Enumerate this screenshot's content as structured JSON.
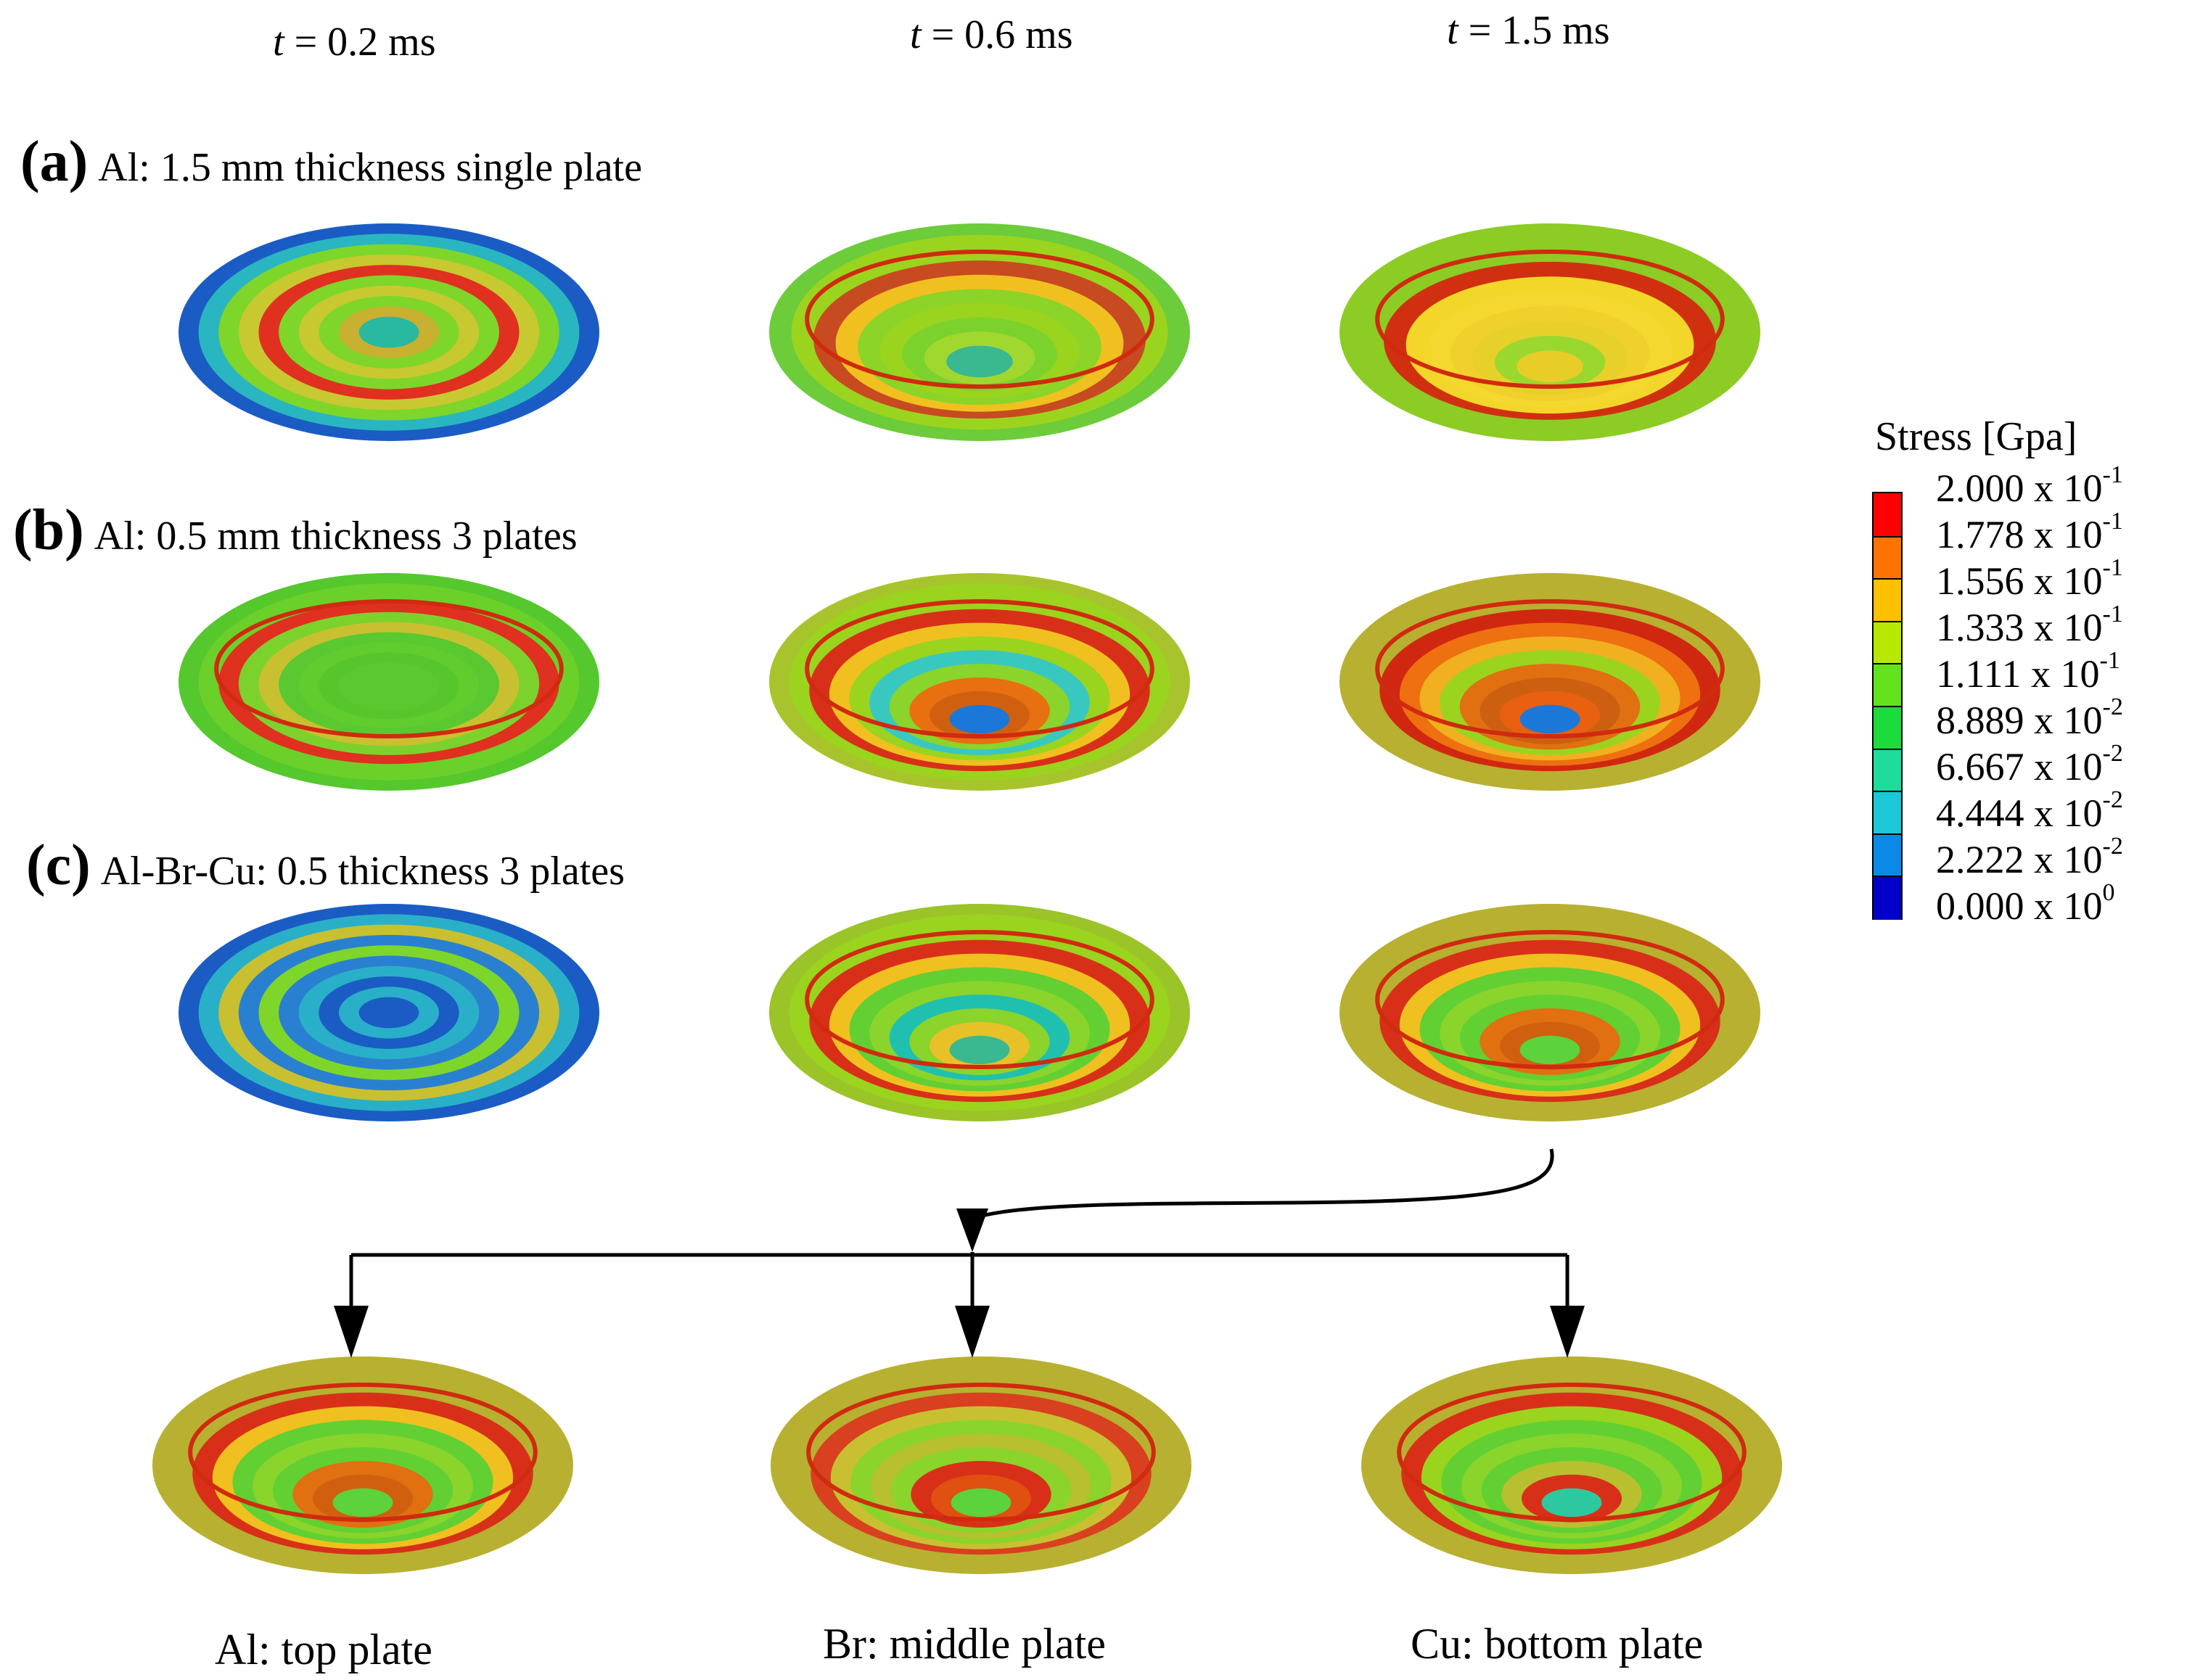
{
  "time_labels": [
    {
      "var": "t",
      "rest": " = 0.2 ms"
    },
    {
      "var": "t",
      "rest": " = 0.6 ms"
    },
    {
      "var": "t",
      "rest": " = 1.5 ms"
    }
  ],
  "rows": [
    {
      "tag": "(a)",
      "text": "Al: 1.5 mm thickness single plate"
    },
    {
      "tag": "(b)",
      "text": "Al: 0.5 mm thickness 3 plates"
    },
    {
      "tag": "(c)",
      "text": "Al-Br-Cu: 0.5 thickness 3 plates"
    }
  ],
  "plate_captions": [
    "Al: top plate",
    "Br: middle plate",
    "Cu: bottom plate"
  ],
  "legend": {
    "title": "Stress [Gpa]",
    "entries": [
      {
        "mantissa": "2.000 x 10",
        "exp": "-1",
        "color": "#ff0000"
      },
      {
        "mantissa": "1.778 x 10",
        "exp": "-1",
        "color": "#ff7300"
      },
      {
        "mantissa": "1.556 x 10",
        "exp": "-1",
        "color": "#ffc000"
      },
      {
        "mantissa": "1.333 x 10",
        "exp": "-1",
        "color": "#b8e800"
      },
      {
        "mantissa": "1.111 x 10",
        "exp": "-1",
        "color": "#62e21a"
      },
      {
        "mantissa": "8.889 x 10",
        "exp": "-2",
        "color": "#1bdc3c"
      },
      {
        "mantissa": "6.667 x 10",
        "exp": "-2",
        "color": "#1ddc9c"
      },
      {
        "mantissa": "4.444 x 10",
        "exp": "-2",
        "color": "#1cc8d8"
      },
      {
        "mantissa": "2.222 x 10",
        "exp": "-2",
        "color": "#0a8ae6"
      },
      {
        "mantissa": "0.000 x 10",
        "exp": "0",
        "color": "#0000c8"
      }
    ]
  },
  "colors": {
    "red": "#ff1a00",
    "orange": "#ff7a00",
    "amber": "#e6b800",
    "olive": "#b4b42c",
    "lime": "#9ad41e",
    "green": "#5cd23c",
    "teal": "#2ec89a",
    "cyan": "#20bcd0",
    "blue": "#1c5ec8"
  },
  "plates": [
    {
      "name": "plate-a-t02",
      "rings": [
        "#1a5cc4",
        "#29b6c0",
        "#7ed62a",
        "#c8c830",
        "#e03020",
        "#7ed62a",
        "#c8c830",
        "#7ed62a",
        "#c8b030",
        "#29b8a0"
      ],
      "dish": 0.0
    },
    {
      "name": "plate-a-t06",
      "rings": [
        "#6ccc3a",
        "#9bd41e",
        "#c84a20",
        "#f0c020",
        "#8cd428",
        "#9ad41e",
        "#7cd22c",
        "#a0d830",
        "#3ab890"
      ],
      "dish": 0.6
    },
    {
      "name": "plate-a-t15",
      "rings": [
        "#8ccc24",
        "#8ccc24",
        "#d03010",
        "#f2d62a",
        "#f4d830",
        "#f0d02a",
        "#e8d02a",
        "#9ad830",
        "#e8cc28"
      ],
      "dish": 0.7
    },
    {
      "name": "plate-b-t02",
      "rings": [
        "#54c82c",
        "#6cd02a",
        "#e03020",
        "#7cd22c",
        "#c8c030",
        "#5ac830",
        "#60cc2e",
        "#56c62c",
        "#5cc830",
        "#5ac830"
      ],
      "dish": 0.1
    },
    {
      "name": "plate-b-t06",
      "rings": [
        "#a8c42c",
        "#9ad41e",
        "#d83018",
        "#f0c020",
        "#9ad41e",
        "#38c8c0",
        "#8ad42c",
        "#e87010",
        "#d06010",
        "#1c78d8"
      ],
      "dish": 0.75
    },
    {
      "name": "plate-b-t15",
      "rings": [
        "#b8b030",
        "#b8b030",
        "#d02810",
        "#ee7010",
        "#f0b020",
        "#9ad41e",
        "#e07010",
        "#cc6010",
        "#e86010",
        "#1c78d8"
      ],
      "dish": 0.75
    },
    {
      "name": "plate-c-t02",
      "rings": [
        "#1a5cc4",
        "#29b0c8",
        "#c8c030",
        "#2a80d0",
        "#7ed62a",
        "#2a80d0",
        "#29b0c8",
        "#1a5cc4",
        "#29b0c8",
        "#1a5cc4"
      ],
      "dish": 0.0
    },
    {
      "name": "plate-c-t06",
      "rings": [
        "#9ac428",
        "#9ad41e",
        "#d83018",
        "#f0c020",
        "#62d032",
        "#8ad42c",
        "#20c0b0",
        "#8ad42c",
        "#e8c028",
        "#3ab890"
      ],
      "dish": 0.75
    },
    {
      "name": "plate-c-t15",
      "rings": [
        "#b8b030",
        "#b8b030",
        "#d83018",
        "#f0c020",
        "#62d032",
        "#8ad42c",
        "#62d032",
        "#e07010",
        "#d06010",
        "#5cd23c"
      ],
      "dish": 0.75
    },
    {
      "name": "plate-top",
      "rings": [
        "#b8b030",
        "#b8b030",
        "#d83018",
        "#f0c020",
        "#62d032",
        "#8ad42c",
        "#62d032",
        "#e07010",
        "#d06010",
        "#5cd23c"
      ],
      "dish": 0.75
    },
    {
      "name": "plate-middle",
      "rings": [
        "#b8b030",
        "#b8b030",
        "#d84020",
        "#c8c030",
        "#8ad42c",
        "#b8c030",
        "#8ad42c",
        "#d83018",
        "#e05010",
        "#5cd23c"
      ],
      "dish": 0.75
    },
    {
      "name": "plate-bottom",
      "rings": [
        "#b8b030",
        "#b8b030",
        "#d83018",
        "#9ad41e",
        "#62d032",
        "#8ad42c",
        "#62d032",
        "#b8c030",
        "#d83018",
        "#2ec8a0"
      ],
      "dish": 0.75
    }
  ]
}
